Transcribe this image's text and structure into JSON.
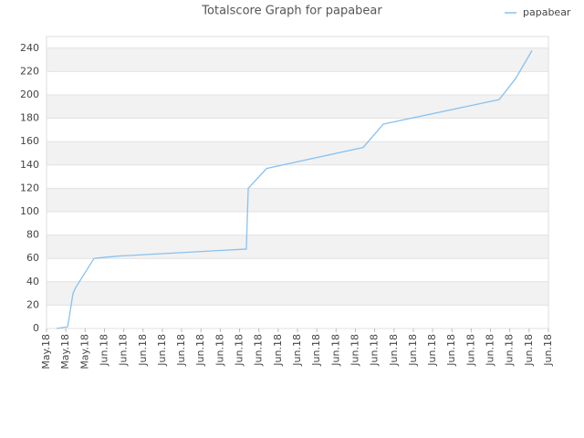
{
  "chart_data": {
    "type": "line",
    "title": "Totalscore Graph for papabear",
    "x": [
      0.52,
      1.09,
      1.18,
      1.37,
      1.51,
      2.46,
      3.03,
      3.74,
      10.35,
      10.45,
      11.4,
      16.4,
      17.45,
      23.45,
      24.3,
      25.15
    ],
    "series": [
      {
        "name": "papabear",
        "color": "#88c1f0",
        "values": [
          0,
          1.5,
          10,
          30,
          35,
          60,
          61,
          62,
          68,
          120,
          137,
          155,
          175,
          196,
          214,
          238
        ]
      }
    ],
    "xlim": [
      0,
      26
    ],
    "xticks": [
      {
        "value": 0,
        "label": "May.18"
      },
      {
        "value": 1,
        "label": "May.18"
      },
      {
        "value": 2,
        "label": "May.18"
      },
      {
        "value": 3,
        "label": "Jun.18"
      },
      {
        "value": 4,
        "label": "Jun.18"
      },
      {
        "value": 5,
        "label": "Jun.18"
      },
      {
        "value": 6,
        "label": "Jun.18"
      },
      {
        "value": 7,
        "label": "Jun.18"
      },
      {
        "value": 8,
        "label": "Jun.18"
      },
      {
        "value": 9,
        "label": "Jun.18"
      },
      {
        "value": 10,
        "label": "Jun.18"
      },
      {
        "value": 11,
        "label": "Jun.18"
      },
      {
        "value": 12,
        "label": "Jun.18"
      },
      {
        "value": 13,
        "label": "Jun.18"
      },
      {
        "value": 14,
        "label": "Jun.18"
      },
      {
        "value": 15,
        "label": "Jun.18"
      },
      {
        "value": 16,
        "label": "Jun.18"
      },
      {
        "value": 17,
        "label": "Jun.18"
      },
      {
        "value": 18,
        "label": "Jun.18"
      },
      {
        "value": 19,
        "label": "Jun.18"
      },
      {
        "value": 20,
        "label": "Jun.18"
      },
      {
        "value": 21,
        "label": "Jun.18"
      },
      {
        "value": 22,
        "label": "Jun.18"
      },
      {
        "value": 23,
        "label": "Jun.18"
      },
      {
        "value": 24,
        "label": "Jun.18"
      },
      {
        "value": 25,
        "label": "Jun.18"
      },
      {
        "value": 26,
        "label": "Jun.18"
      }
    ],
    "ylim": [
      0,
      250
    ],
    "yticks": [
      0,
      20,
      40,
      60,
      80,
      100,
      120,
      140,
      160,
      180,
      200,
      220,
      240
    ],
    "grid": true,
    "legend": "top-right"
  }
}
